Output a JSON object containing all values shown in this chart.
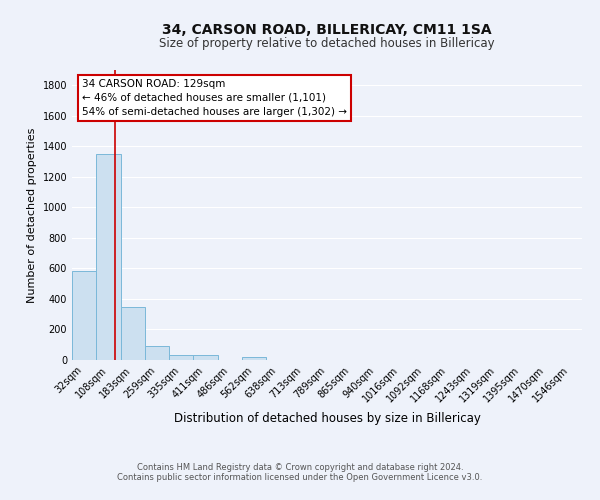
{
  "title1": "34, CARSON ROAD, BILLERICAY, CM11 1SA",
  "title2": "Size of property relative to detached houses in Billericay",
  "xlabel": "Distribution of detached houses by size in Billericay",
  "ylabel": "Number of detached properties",
  "categories": [
    "32sqm",
    "108sqm",
    "183sqm",
    "259sqm",
    "335sqm",
    "411sqm",
    "486sqm",
    "562sqm",
    "638sqm",
    "713sqm",
    "789sqm",
    "865sqm",
    "940sqm",
    "1016sqm",
    "1092sqm",
    "1168sqm",
    "1243sqm",
    "1319sqm",
    "1395sqm",
    "1470sqm",
    "1546sqm"
  ],
  "values": [
    580,
    1350,
    350,
    90,
    30,
    30,
    0,
    20,
    0,
    0,
    0,
    0,
    0,
    0,
    0,
    0,
    0,
    0,
    0,
    0,
    0
  ],
  "bar_color": "#cce0f0",
  "bar_edge_color": "#7ab8d9",
  "annotation_title": "34 CARSON ROAD: 129sqm",
  "annotation_line1": "← 46% of detached houses are smaller (1,101)",
  "annotation_line2": "54% of semi-detached houses are larger (1,302) →",
  "red_line_color": "#cc0000",
  "footer1": "Contains HM Land Registry data © Crown copyright and database right 2024.",
  "footer2": "Contains public sector information licensed under the Open Government Licence v3.0.",
  "ylim": [
    0,
    1900
  ],
  "yticks": [
    0,
    200,
    400,
    600,
    800,
    1000,
    1200,
    1400,
    1600,
    1800
  ],
  "bg_color": "#eef2fa",
  "plot_bg": "#eef2fa",
  "grid_color": "#ffffff",
  "title1_fontsize": 10,
  "title2_fontsize": 8.5,
  "ylabel_fontsize": 8,
  "xlabel_fontsize": 8.5,
  "tick_fontsize": 7,
  "footer_fontsize": 6,
  "ann_fontsize": 7.5
}
